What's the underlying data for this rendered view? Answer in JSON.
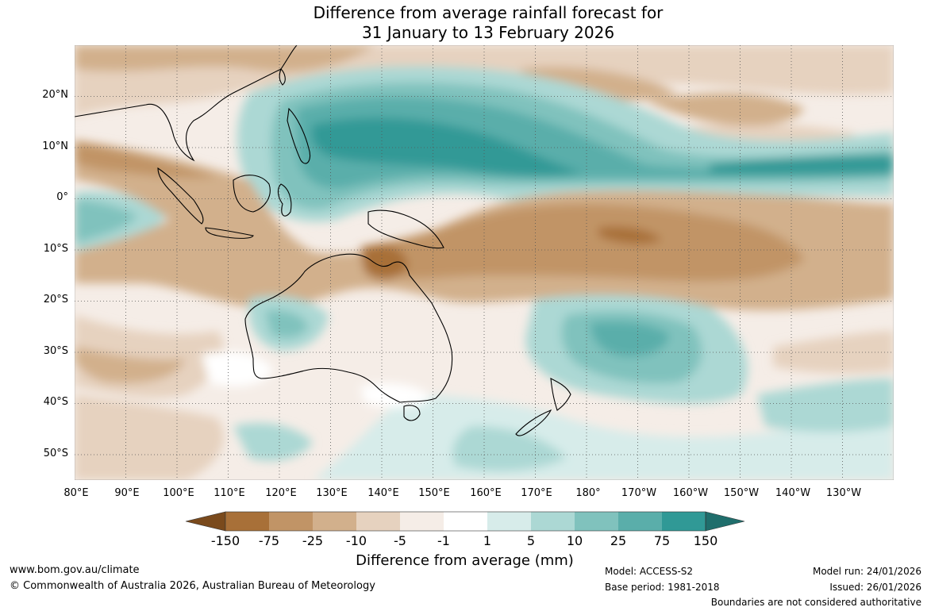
{
  "title": {
    "line1": "Difference from average rainfall forecast for",
    "line2": "31 January to 13 February 2026"
  },
  "map": {
    "latitude_labels": [
      "20°N",
      "10°N",
      "0°",
      "10°S",
      "20°S",
      "30°S",
      "40°S",
      "50°S"
    ],
    "longitude_labels": [
      "80°E",
      "90°E",
      "100°E",
      "110°E",
      "120°E",
      "130°E",
      "140°E",
      "150°E",
      "160°E",
      "170°E",
      "180°",
      "170°W",
      "160°W",
      "150°W",
      "140°W",
      "130°W"
    ],
    "extent": {
      "lon_min": 80,
      "lon_max": 240,
      "lat_min": -55,
      "lat_max": 30
    },
    "gridlines": true
  },
  "legend": {
    "title": "Difference from average (mm)",
    "tick_labels": [
      "-150",
      "-75",
      "-25",
      "-10",
      "-5",
      "-1",
      "1",
      "5",
      "10",
      "25",
      "75",
      "150"
    ],
    "colors": [
      "#a87038",
      "#c19466",
      "#d2b08c",
      "#e6d2bf",
      "#f5ede7",
      "#ffffff",
      "#d7ecea",
      "#acd8d4",
      "#80c2bd",
      "#5aaeaa",
      "#309996",
      "#1f6e6c",
      "#7a4a1c"
    ]
  },
  "footer": {
    "website": "www.bom.gov.au/climate",
    "copyright": "© Commonwealth of Australia 2026, Australian Bureau of Meteorology",
    "model": "Model: ACCESS-S2",
    "base_period": "Base period: 1981-2018",
    "model_run": "Model run: 24/01/2026",
    "issued": "Issued: 26/01/2026",
    "disclaimer": "Boundaries are not considered authoritative"
  }
}
